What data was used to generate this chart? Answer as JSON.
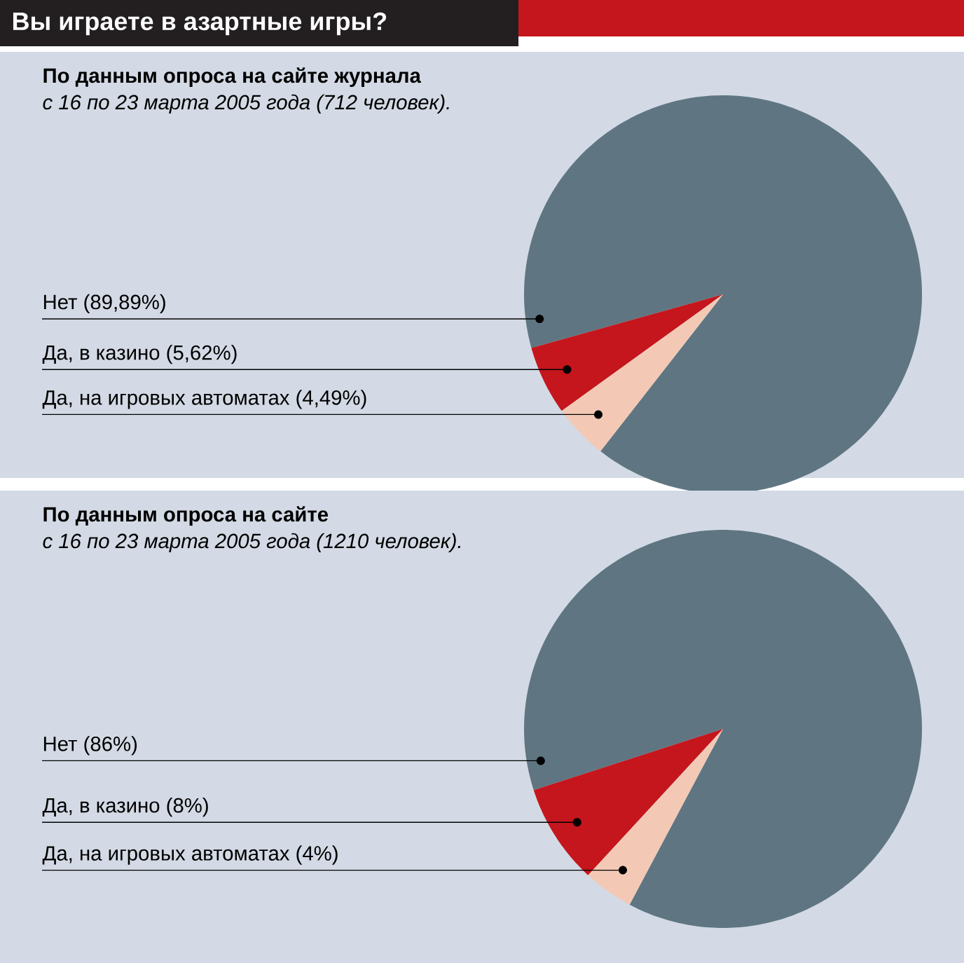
{
  "chart_data": [
    {
      "type": "pie",
      "title": "Вы играете в азартные игры?",
      "subtitle": "По данным опроса на сайте журнала",
      "annotations": [
        "с 16 по 23 марта 2005 года (712 человек)."
      ],
      "categories": [
        "Нет",
        "Да, в казино",
        "Да, на игровых автоматах"
      ],
      "values": [
        89.89,
        5.62,
        4.49
      ],
      "value_labels": [
        "(89,89%)",
        "(5,62%)",
        "(4,49%)"
      ],
      "colors": [
        "#5f7682",
        "#c4161c",
        "#f3c9b5"
      ]
    },
    {
      "type": "pie",
      "subtitle": "По данным опроса на сайте",
      "annotations": [
        "с 16 по 23 марта 2005 года (1210 человек)."
      ],
      "categories": [
        "Нет",
        "Да, в казино",
        "Да, на игровых автоматах"
      ],
      "values": [
        86,
        8,
        4
      ],
      "value_labels": [
        "(86%)",
        "(8%)",
        "(4%)"
      ],
      "colors": [
        "#5f7682",
        "#c4161c",
        "#f3c9b5"
      ]
    }
  ]
}
